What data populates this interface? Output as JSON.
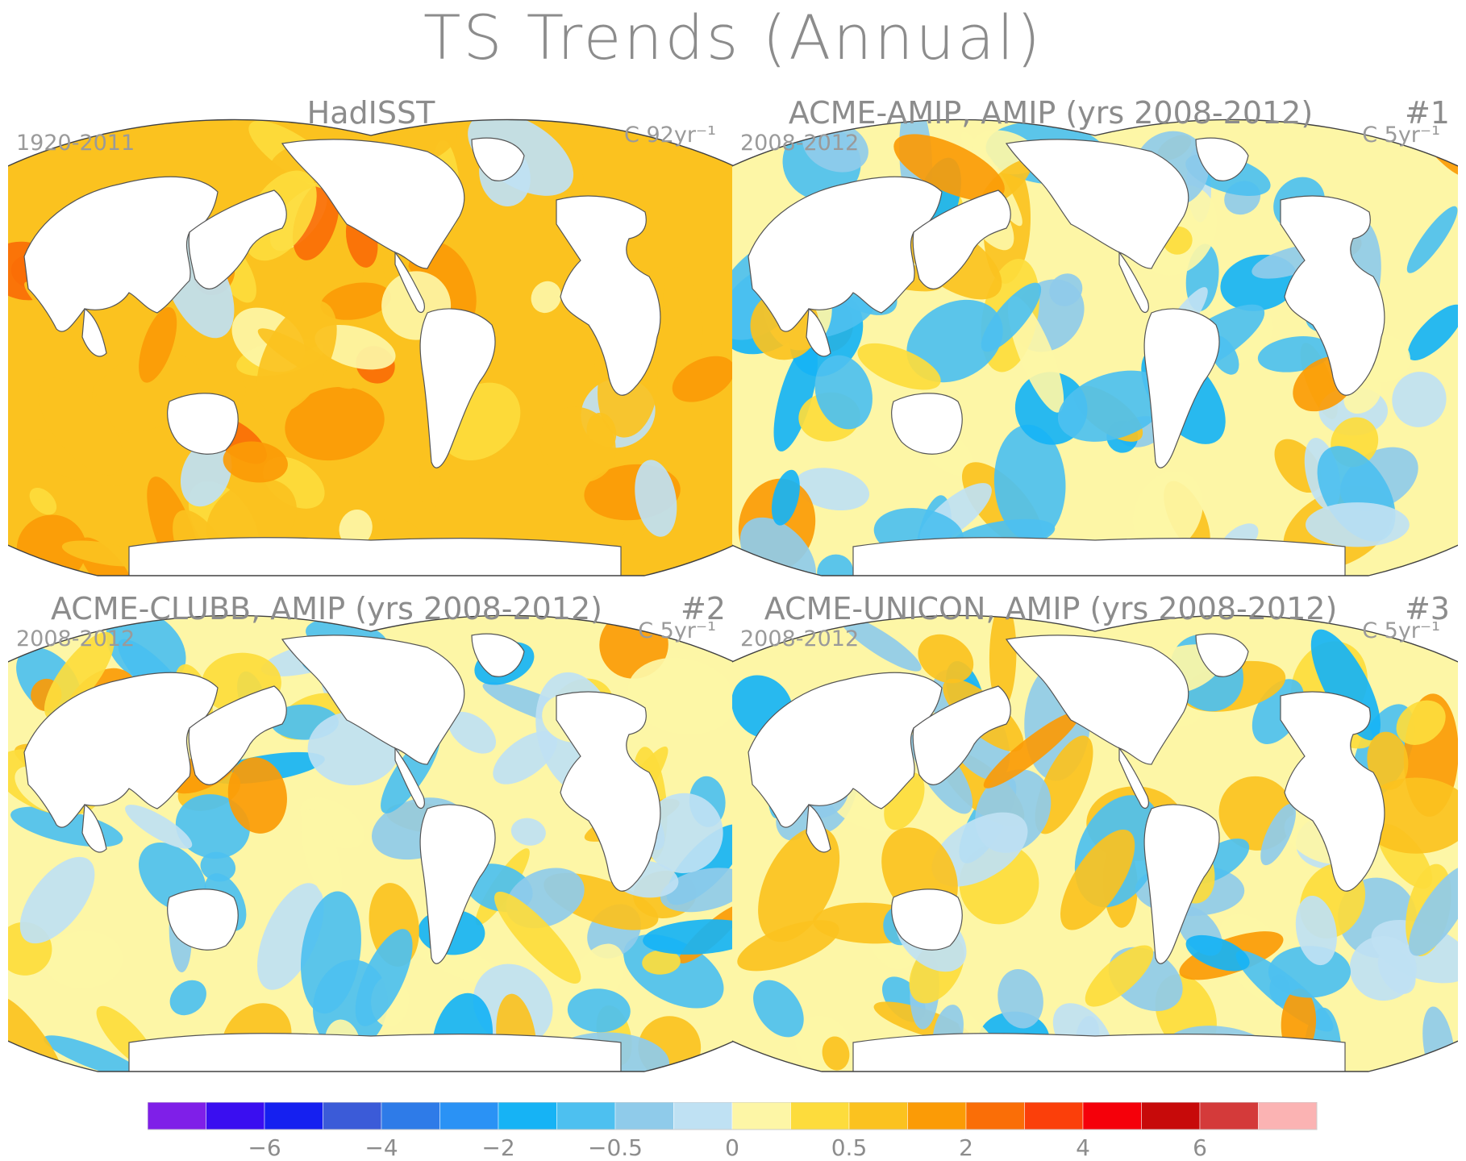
{
  "title": "TS Trends (Annual)",
  "panels": [
    {
      "id": "hadisst",
      "title": "HadISST",
      "number": "",
      "period": "1920-2011",
      "units": "C 92yr⁻¹",
      "dataset": "observed",
      "base_level_index": 12
    },
    {
      "id": "acme-amip",
      "title": "ACME-AMIP, AMIP (yrs 2008-2012)",
      "number": "#1",
      "period": "2008-2012",
      "units": "C 5yr⁻¹",
      "dataset": "model",
      "base_level_index": 10
    },
    {
      "id": "acme-clubb",
      "title": "ACME-CLUBB, AMIP (yrs 2008-2012)",
      "number": "#2",
      "period": "2008-2012",
      "units": "C 5yr⁻¹",
      "dataset": "model",
      "base_level_index": 10
    },
    {
      "id": "acme-unicon",
      "title": "ACME-UNICON, AMIP (yrs 2008-2012)",
      "number": "#3",
      "period": "2008-2012",
      "units": "C 5yr⁻¹",
      "dataset": "model",
      "base_level_index": 10
    }
  ],
  "colorbar": {
    "colors": [
      "#7f1fe8",
      "#3a0ef0",
      "#1520f0",
      "#3b5bd8",
      "#2e7be8",
      "#2a92f5",
      "#16b3f5",
      "#4dc0f0",
      "#8fcbea",
      "#bfe1f3",
      "#fdf6a6",
      "#fddc3c",
      "#fbc21f",
      "#fb9b06",
      "#fa6e07",
      "#fb3f0a",
      "#f5000a",
      "#c70a0a",
      "#d43a3a",
      "#fbb3b3"
    ],
    "tick_labels": [
      "−6",
      "−4",
      "−2",
      "−0.5",
      "0",
      "0.5",
      "2",
      "4",
      "6"
    ],
    "tick_boundary_index": [
      2,
      4,
      6,
      8,
      10,
      12,
      14,
      16,
      18
    ]
  },
  "colors": {
    "land": "#ffffff",
    "coast": "#555555",
    "text": "#8c8c8c",
    "frame": "#404040"
  }
}
